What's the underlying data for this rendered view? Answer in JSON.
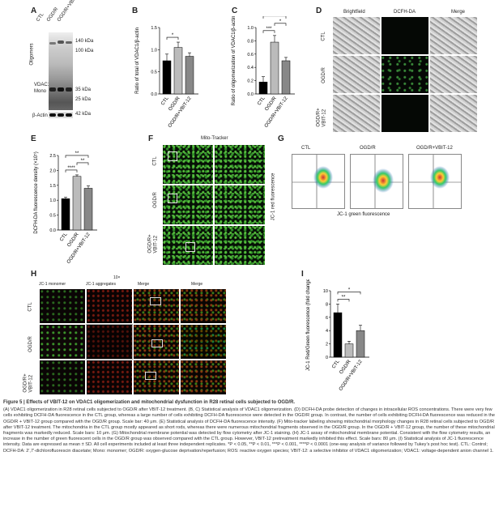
{
  "panel_letters": [
    "A",
    "B",
    "C",
    "D",
    "E",
    "F",
    "G",
    "H",
    "I"
  ],
  "A": {
    "lanes": [
      "CTL",
      "OGD/R",
      "OGD/R+VBIT-12"
    ],
    "oligomers_label": "Oligomers",
    "vdac_label": "VDAC1",
    "mono_label": "Mono",
    "actin_label": "β-Actin",
    "markers": [
      "140 kDa",
      "100 kDa",
      "35 kDa",
      "25 kDa",
      "42 kDa"
    ]
  },
  "D": {
    "cols": [
      "Brightfield",
      "DCFH-DA",
      "Merge"
    ],
    "rows": [
      "CTL",
      "OGD/R",
      "OGD/R+\nVBIT-12"
    ]
  },
  "F": {
    "title": "Mito-Tracker",
    "rows": [
      "CTL",
      "OGD/R",
      "OGD/R+\nVBIT-12"
    ]
  },
  "G": {
    "cols": [
      "CTL",
      "OGD/R",
      "OGD/R+VBIT-12"
    ],
    "xlabel": "JC-1 green fluorescence",
    "ylabel": "JC-1 red fluorescence"
  },
  "H": {
    "mag": "10×",
    "cols": [
      "JC-1 monomer",
      "JC-1 aggregates",
      "Merge",
      "Merge"
    ],
    "rows": [
      "CTL",
      "OGD/R",
      "OGD/R+\nVBIT-12"
    ]
  },
  "chart_data": [
    {
      "panel": "B",
      "type": "bar",
      "categories": [
        "CTL",
        "OGD/R",
        "OGD/R+VBIT-12"
      ],
      "values": [
        0.75,
        1.05,
        0.85
      ],
      "errors": [
        0.15,
        0.12,
        0.08
      ],
      "colors": [
        "#000000",
        "#bbbbbb",
        "#888888"
      ],
      "ylabel": "Ratio of total of VDAC1/β-actin",
      "ylim": [
        0,
        1.5
      ],
      "yticks": [
        "0.0",
        "0.5",
        "1.0",
        "1.5"
      ],
      "sig": [
        {
          "from": 0,
          "to": 1,
          "label": "*"
        }
      ]
    },
    {
      "panel": "C",
      "type": "bar",
      "categories": [
        "CTL",
        "OGD/R",
        "OGD/R+VBIT-12"
      ],
      "values": [
        0.18,
        0.78,
        0.5
      ],
      "errors": [
        0.08,
        0.1,
        0.05
      ],
      "colors": [
        "#000000",
        "#bbbbbb",
        "#888888"
      ],
      "ylabel": "Ratio of oligomerization of VDAC1/β-actin",
      "ylim": [
        0,
        1.0
      ],
      "yticks": [
        "0.0",
        "0.2",
        "0.4",
        "0.6",
        "0.8",
        "1.0"
      ],
      "sig": [
        {
          "from": 0,
          "to": 1,
          "label": "***"
        },
        {
          "from": 1,
          "to": 2,
          "label": "*"
        },
        {
          "from": 0,
          "to": 2,
          "label": "*"
        }
      ]
    },
    {
      "panel": "E",
      "type": "bar",
      "categories": [
        "CTL",
        "OGD/R",
        "OGD/R+VBIT-12"
      ],
      "values": [
        1.05,
        1.8,
        1.4
      ],
      "errors": [
        0.05,
        0.05,
        0.08
      ],
      "colors": [
        "#000000",
        "#bbbbbb",
        "#888888"
      ],
      "ylabel": "DCFH-DA fluorescence density (×10⁵)",
      "ylim": [
        0,
        2.5
      ],
      "yticks": [
        "0.0",
        "0.5",
        "1.0",
        "1.5",
        "2.0",
        "2.5"
      ],
      "sig": [
        {
          "from": 0,
          "to": 1,
          "label": "****"
        },
        {
          "from": 1,
          "to": 2,
          "label": "**"
        },
        {
          "from": 0,
          "to": 2,
          "label": "**"
        }
      ]
    },
    {
      "panel": "I",
      "type": "bar",
      "categories": [
        "CTL",
        "OGD/R",
        "OGD/R+VBIT-12"
      ],
      "values": [
        6.7,
        2.0,
        4.0
      ],
      "errors": [
        1.3,
        0.4,
        0.8
      ],
      "colors": [
        "#000000",
        "#bbbbbb",
        "#888888"
      ],
      "ylabel": "JC-1 Red/Green fluorescence (fold change)",
      "ylim": [
        0,
        10
      ],
      "yticks": [
        "0",
        "2",
        "4",
        "6",
        "8",
        "10"
      ],
      "sig": [
        {
          "from": 0,
          "to": 1,
          "label": "**"
        },
        {
          "from": 0,
          "to": 2,
          "label": "*"
        }
      ]
    }
  ],
  "caption": {
    "title": "Figure 5 | Effects of VBIT-12 on VDAC1 oligomerization and mitochondrial dysfunction in R28 retinal cells subjected to OGD/R.",
    "body": "(A) VDAC1 oligomerization in R28 retinal cells subjected to OGD/R after VBIT-12 treatment. (B, C) Statistical analysis of VDAC1 oligomerization. (D) DCFH-DA probe detection of changes in intracellular ROS concentrations. There were very few cells exhibiting DCFH-DA fluorescence in the CTL group, whereas a large number of cells exhibiting DCFH-DA fluorescence were detected in the OGD/R group. In contrast, the number of cells exhibiting DCFH-DA fluorescence was reduced in the OGD/R + VBIT-12 group compared with the OGD/R group. Scale bar: 40 μm. (E) Statistical analysis of DCFH-DA fluorescence intensity. (F) Mito-tracker labeling showing mitochondrial morphology changes in R28 retinal cells subjected to OGD/R after VBIT-12 treatment. The mitochondria in the CTL group mostly appeared as short rods, whereas there were numerous mitochondrial fragments observed in the OGD/R group. In the OGD/R + VBIT-12 group, the number of these mitochondrial fragments was markedly reduced. Scale bars: 10 μm. (G) Mitochondrial membrane potential was detected by flow cytometry after JC-1 staining. (H) JC-1 assay of mitochondrial membrane potential. Consistent with the flow cytometry results, an increase in the number of green fluorescent cells in the OGD/R group was observed compared with the CTL group. However, VBIT-12 pretreatment markedly inhibited this effect. Scale bars: 80 μm. (I) Statistical analysis of JC-1 fluorescence intensity. Data are expressed as mean ± SD. All cell experiments included at least three independent replicates. *P < 0.05, **P < 0.01, ***P < 0.001, ****P < 0.0001 (one-way analysis of variance followed by Tukey’s post hoc test). CTL: Control; DCFH-DA: 2′,7′-dichlorofluorescin diacetate; Mono: monomer; OGD/R: oxygen-glucose deprivation/reperfusion; ROS: reactive oxygen species; VBIT-12: a selective inhibitor of VDAC1 oligomerization; VDAC1: voltage-dependent anion channel 1."
  }
}
